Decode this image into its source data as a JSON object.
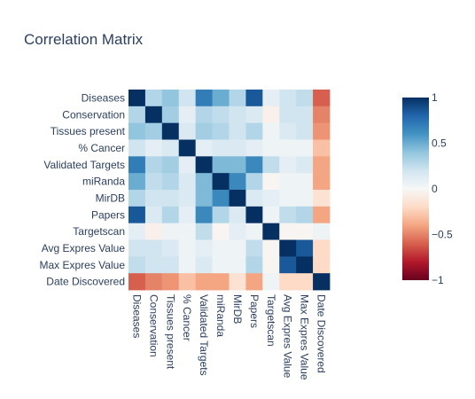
{
  "chart_data": {
    "type": "heatmap",
    "title": "Correlation Matrix",
    "xlabel": "",
    "ylabel": "",
    "x": [
      "Diseases",
      "Conservation",
      "Tissues present",
      "% Cancer",
      "Validated Targets",
      "miRanda",
      "MirDB",
      "Papers",
      "Targetscan",
      "Avg Expres Value",
      "Max Expres Value",
      "Date Discovered"
    ],
    "y": [
      "Diseases",
      "Conservation",
      "Tissues present",
      "% Cancer",
      "Validated Targets",
      "miRanda",
      "MirDB",
      "Papers",
      "Targetscan",
      "Avg Expres Value",
      "Max Expres Value",
      "Date Discovered"
    ],
    "z": [
      [
        1.0,
        0.3,
        0.4,
        0.2,
        0.7,
        0.5,
        0.3,
        0.85,
        0.1,
        0.2,
        0.25,
        -0.6
      ],
      [
        0.3,
        1.0,
        0.35,
        0.1,
        0.3,
        0.25,
        0.2,
        0.15,
        -0.05,
        0.2,
        0.2,
        -0.5
      ],
      [
        0.4,
        0.35,
        1.0,
        0.15,
        0.35,
        0.3,
        0.2,
        0.3,
        0.05,
        0.15,
        0.2,
        -0.45
      ],
      [
        0.2,
        0.1,
        0.15,
        1.0,
        0.1,
        0.15,
        0.15,
        0.1,
        0.05,
        0.05,
        0.05,
        -0.3
      ],
      [
        0.7,
        0.3,
        0.35,
        0.1,
        1.0,
        0.45,
        0.45,
        0.65,
        0.25,
        0.1,
        0.15,
        -0.4
      ],
      [
        0.5,
        0.25,
        0.3,
        0.15,
        0.45,
        1.0,
        0.65,
        0.3,
        -0.02,
        0.05,
        0.05,
        -0.4
      ],
      [
        0.3,
        0.2,
        0.2,
        0.15,
        0.45,
        0.65,
        1.0,
        0.15,
        0.1,
        0.05,
        0.05,
        -0.15
      ],
      [
        0.85,
        0.15,
        0.3,
        0.1,
        0.65,
        0.3,
        0.15,
        1.0,
        0.05,
        0.25,
        0.3,
        -0.4
      ],
      [
        0.1,
        -0.05,
        0.05,
        0.05,
        0.25,
        -0.02,
        0.1,
        0.05,
        1.0,
        -0.02,
        -0.02,
        0.05
      ],
      [
        0.2,
        0.2,
        0.15,
        0.05,
        0.1,
        0.05,
        0.05,
        0.25,
        -0.02,
        1.0,
        0.85,
        -0.2
      ],
      [
        0.25,
        0.2,
        0.2,
        0.05,
        0.15,
        0.05,
        0.05,
        0.3,
        -0.02,
        0.85,
        1.0,
        -0.2
      ],
      [
        -0.6,
        -0.5,
        -0.45,
        -0.3,
        -0.4,
        -0.4,
        -0.15,
        -0.4,
        0.05,
        -0.2,
        -0.2,
        1.0
      ]
    ],
    "zlim": [
      -1,
      1
    ],
    "colorscale": "RdBu",
    "colorbar_ticks": [
      "1",
      "0.5",
      "0",
      "−0.5",
      "−1"
    ],
    "colorbar_tick_values": [
      1,
      0.5,
      0,
      -0.5,
      -1
    ],
    "legend": "colorbar-right"
  }
}
